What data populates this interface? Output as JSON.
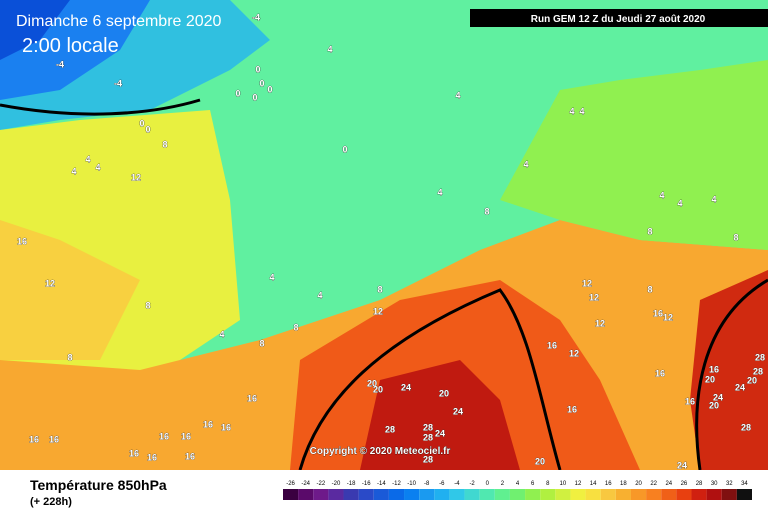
{
  "header": {
    "title": "Dimanche 6 septembre 2020",
    "time": "2:00 locale",
    "run": "Run GEM 12 Z du Jeudi 27 août 2020"
  },
  "copyright": "Copyright © 2020 Meteociel.fr",
  "footer": {
    "variable": "Température 850hPa",
    "lead": "(+ 228h)"
  },
  "colorbar": {
    "labels": [
      -26,
      -24,
      -22,
      -20,
      -18,
      -16,
      -14,
      -12,
      -10,
      -8,
      -6,
      -4,
      -2,
      0,
      2,
      4,
      6,
      8,
      10,
      12,
      14,
      16,
      18,
      20,
      22,
      24,
      26,
      28,
      30,
      32,
      34
    ],
    "colors": [
      "#3a0040",
      "#5a0a6a",
      "#6e1a8a",
      "#5a2aa0",
      "#3a3ab0",
      "#2a4ac8",
      "#1a5ad8",
      "#0a6ae8",
      "#0a80f0",
      "#1a9af0",
      "#20b0f0",
      "#30c8e8",
      "#40d8d0",
      "#50e8b0",
      "#60f090",
      "#70f070",
      "#90f050",
      "#b0f040",
      "#d0f040",
      "#f0f040",
      "#f8e040",
      "#f8c840",
      "#f8b030",
      "#f89828",
      "#f88020",
      "#f06018",
      "#e84010",
      "#d02010",
      "#b01010",
      "#801010",
      "#101010"
    ]
  },
  "map_labels": [
    -4,
    -4,
    -4,
    0,
    0,
    0,
    0,
    0,
    0,
    0,
    0,
    4,
    4,
    4,
    4,
    4,
    4,
    4,
    8,
    12,
    4,
    4,
    8,
    4,
    4,
    4,
    8,
    8,
    16,
    12,
    4,
    4,
    4,
    8,
    8,
    8,
    8,
    8,
    12,
    12,
    12,
    8,
    12,
    16,
    12,
    16,
    12,
    20,
    20,
    24,
    20,
    24,
    28,
    24,
    28,
    28,
    28,
    16,
    16,
    16,
    16,
    16,
    20,
    28,
    28,
    20,
    24,
    24,
    20,
    16,
    28,
    20,
    24,
    16,
    16,
    16,
    16,
    16,
    16,
    16,
    16
  ]
}
